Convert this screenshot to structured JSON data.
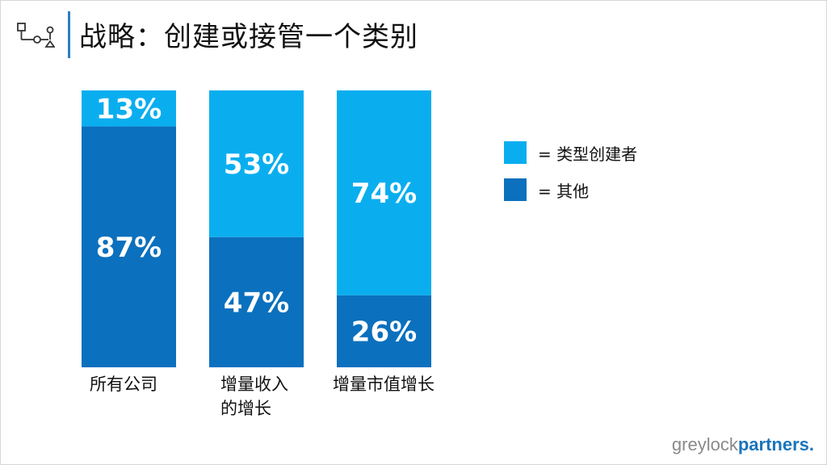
{
  "header": {
    "title": "战略：创建或接管一个类别"
  },
  "icons": {
    "logo": "flowchart-icon"
  },
  "colors": {
    "creator": "#0aaeef",
    "other": "#0b70bd",
    "title_bar": "#2a7fc4"
  },
  "chart_data": {
    "type": "bar",
    "stacked": true,
    "percent": true,
    "categories": [
      "所有公司",
      "增量收入\n的增长",
      "增量市值增长"
    ],
    "series": [
      {
        "name": "类型创建者",
        "values": [
          13,
          53,
          74
        ],
        "labels": [
          "13%",
          "53%",
          "74%"
        ]
      },
      {
        "name": "其他",
        "values": [
          87,
          47,
          26
        ],
        "labels": [
          "87%",
          "47%",
          "26%"
        ]
      }
    ],
    "ylim": [
      0,
      100
    ],
    "grid": false,
    "legend_placement": "right"
  },
  "legend": {
    "items": [
      {
        "text": "= 类型创建者"
      },
      {
        "text": "= 其他"
      }
    ]
  },
  "footer": {
    "brand_a": "greylock",
    "brand_b": "partners."
  }
}
